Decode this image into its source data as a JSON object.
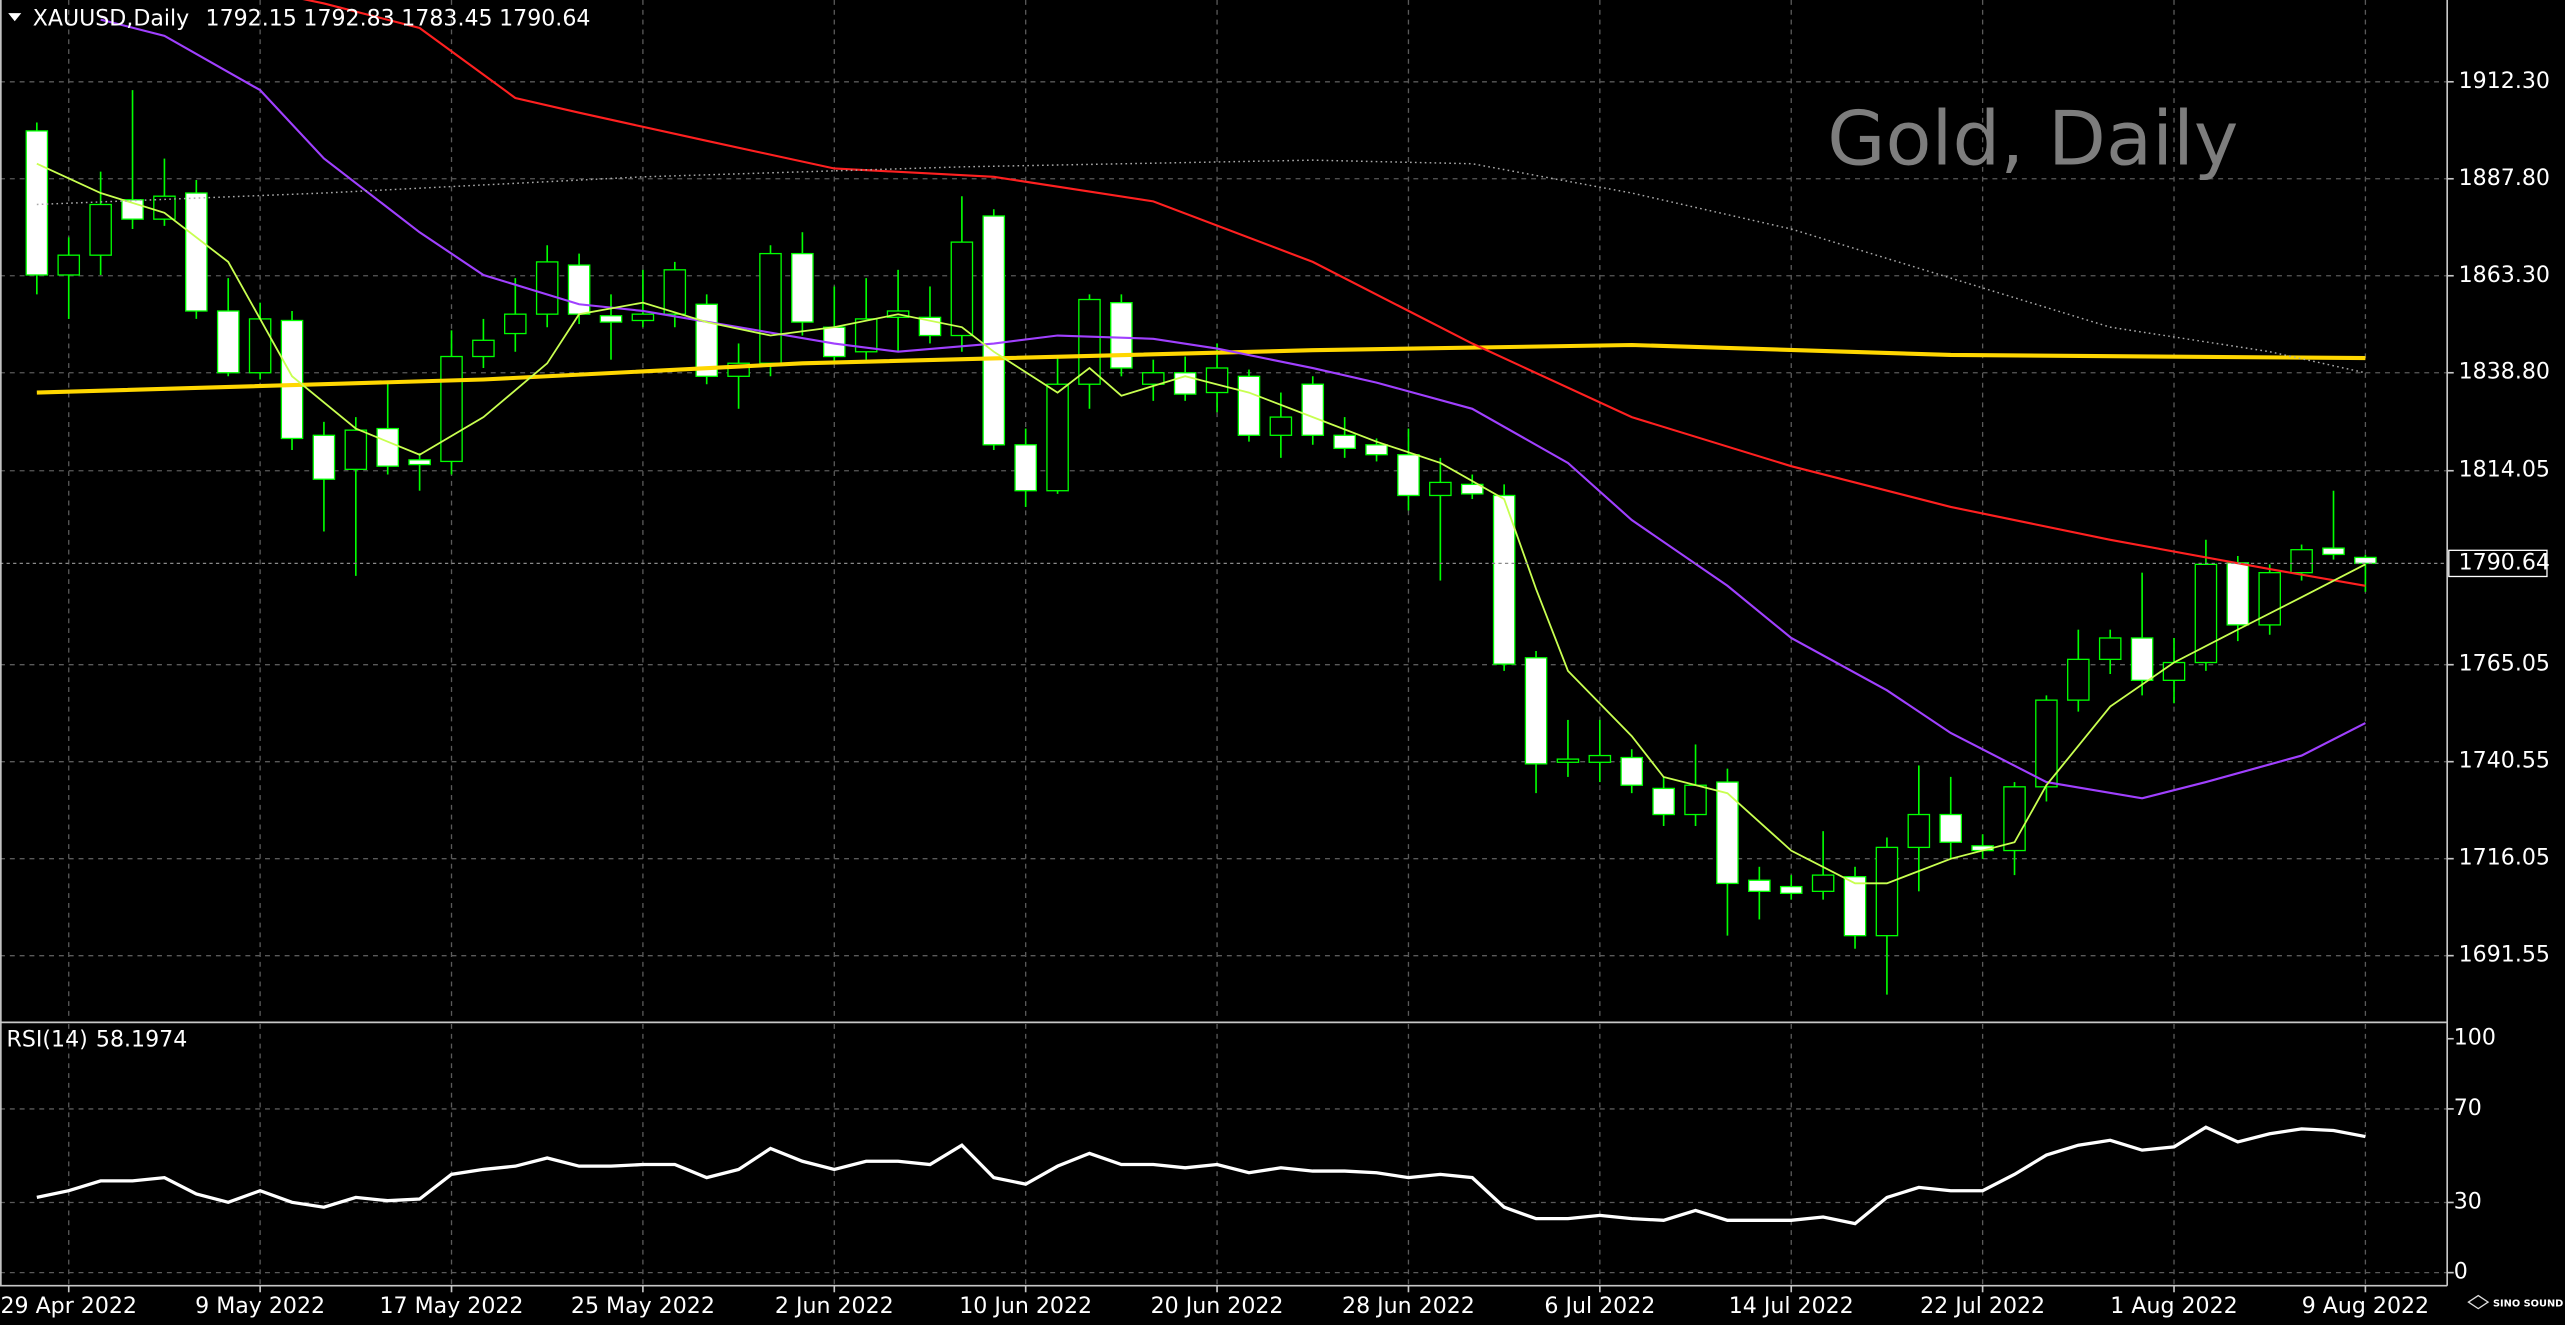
{
  "chart_data": [
    {
      "type": "candlestick",
      "title": "Gold, Daily",
      "symbol": "XAUUSD,Daily",
      "categories": [
        null,
        "29 Apr 2022",
        null,
        null,
        null,
        null,
        null,
        "9 May 2022",
        null,
        null,
        null,
        null,
        null,
        "17 May 2022",
        null,
        null,
        null,
        null,
        null,
        "25 May 2022",
        null,
        null,
        null,
        null,
        null,
        "2 Jun 2022",
        null,
        null,
        null,
        null,
        null,
        "10 Jun 2022",
        null,
        null,
        null,
        null,
        null,
        "20 Jun 2022",
        null,
        null,
        null,
        null,
        null,
        "28 Jun 2022",
        null,
        null,
        null,
        null,
        null,
        "6 Jul 2022",
        null,
        null,
        null,
        null,
        null,
        "14 Jul 2022",
        null,
        null,
        null,
        null,
        null,
        "22 Jul 2022",
        null,
        null,
        null,
        null,
        null,
        "1 Aug 2022",
        null,
        null,
        null,
        null,
        null,
        "9 Aug 2022"
      ],
      "open": [
        1899.9,
        1863.5,
        1868.5,
        1882.5,
        1877.6,
        1884.2,
        1854.4,
        1838.8,
        1852.0,
        1823.0,
        1814.4,
        1824.7,
        1816.8,
        1816.4,
        1842.9,
        1848.7,
        1853.6,
        1866.0,
        1853.2,
        1852.0,
        1853.6,
        1856.1,
        1837.9,
        1841.2,
        1868.9,
        1850.3,
        1844.1,
        1852.8,
        1852.8,
        1848.2,
        1878.4,
        1820.6,
        1809.0,
        1835.9,
        1856.5,
        1835.9,
        1838.8,
        1833.8,
        1837.9,
        1823.0,
        1835.9,
        1823.0,
        1820.6,
        1818.1,
        1807.8,
        1810.6,
        1807.8,
        1766.8,
        1740.4,
        1740.4,
        1741.6,
        1733.8,
        1727.2,
        1735.4,
        1710.6,
        1709.0,
        1707.8,
        1711.5,
        1696.6,
        1718.9,
        1727.2,
        1719.3,
        1718.1,
        1734.2,
        1756.1,
        1766.4,
        1771.8,
        1761.1,
        1765.6,
        1790.8,
        1775.1,
        1788.3,
        1794.5,
        1792.15
      ],
      "high": [
        1902.0,
        1873.0,
        1889.6,
        1910.2,
        1892.9,
        1887.5,
        1862.7,
        1856.5,
        1854.4,
        1826.4,
        1827.6,
        1836.7,
        1818.5,
        1849.5,
        1852.4,
        1862.7,
        1871.0,
        1868.9,
        1858.6,
        1864.8,
        1866.8,
        1858.6,
        1846.2,
        1871.0,
        1874.3,
        1860.6,
        1862.7,
        1864.8,
        1860.6,
        1883.4,
        1880.1,
        1824.7,
        1842.9,
        1858.6,
        1858.6,
        1842.1,
        1842.9,
        1846.2,
        1839.6,
        1833.8,
        1837.9,
        1827.6,
        1822.2,
        1824.7,
        1817.3,
        1813.1,
        1810.6,
        1768.5,
        1751.1,
        1751.1,
        1743.7,
        1736.7,
        1744.9,
        1738.8,
        1714.0,
        1711.9,
        1723.0,
        1714.0,
        1721.4,
        1739.6,
        1736.7,
        1722.2,
        1735.4,
        1757.3,
        1773.9,
        1773.9,
        1788.3,
        1771.8,
        1796.6,
        1792.5,
        1790.4,
        1795.4,
        1809.0,
        1792.83
      ],
      "low": [
        1858.6,
        1852.4,
        1863.5,
        1875.1,
        1875.9,
        1852.4,
        1837.9,
        1837.1,
        1819.3,
        1798.7,
        1787.5,
        1813.1,
        1809.0,
        1813.1,
        1840.0,
        1844.1,
        1850.3,
        1851.1,
        1842.1,
        1850.3,
        1850.3,
        1835.9,
        1829.7,
        1837.9,
        1848.2,
        1841.2,
        1842.1,
        1844.1,
        1846.2,
        1844.1,
        1819.3,
        1804.9,
        1808.2,
        1829.7,
        1837.9,
        1831.7,
        1831.7,
        1828.8,
        1821.4,
        1817.3,
        1820.6,
        1817.3,
        1816.4,
        1804.0,
        1786.3,
        1806.9,
        1763.5,
        1732.6,
        1736.7,
        1735.4,
        1732.6,
        1724.3,
        1724.3,
        1696.6,
        1700.7,
        1705.7,
        1705.7,
        1693.3,
        1681.7,
        1707.8,
        1716.0,
        1716.0,
        1711.9,
        1730.5,
        1753.2,
        1762.7,
        1757.3,
        1755.3,
        1763.5,
        1771.0,
        1772.6,
        1786.3,
        1791.6,
        1783.45
      ],
      "close": [
        1863.5,
        1868.5,
        1881.3,
        1877.6,
        1883.4,
        1854.4,
        1838.8,
        1852.4,
        1822.2,
        1811.9,
        1824.3,
        1815.2,
        1815.6,
        1842.9,
        1847.0,
        1853.6,
        1866.8,
        1853.6,
        1851.6,
        1853.6,
        1864.8,
        1837.9,
        1841.2,
        1868.9,
        1851.6,
        1842.9,
        1852.4,
        1854.4,
        1848.2,
        1871.8,
        1820.6,
        1809.0,
        1835.9,
        1857.3,
        1840.0,
        1838.8,
        1833.4,
        1840.0,
        1823.0,
        1827.6,
        1823.0,
        1819.7,
        1818.1,
        1807.8,
        1811.1,
        1808.2,
        1765.2,
        1740.0,
        1741.2,
        1742.1,
        1734.6,
        1727.2,
        1734.6,
        1709.8,
        1707.8,
        1707.3,
        1711.9,
        1696.6,
        1718.9,
        1727.2,
        1720.2,
        1718.1,
        1734.2,
        1756.1,
        1766.4,
        1771.8,
        1761.1,
        1765.6,
        1790.4,
        1775.1,
        1788.3,
        1794.1,
        1792.9,
        1790.64
      ],
      "up_color": "#000000",
      "down_color": "#ffffff",
      "wick_color": "#00ff00",
      "ylim": [
        1675.11,
        1932.96
      ],
      "yticks": [
        {
          "value": 1912.3,
          "label": "1912.30"
        },
        {
          "value": 1887.8,
          "label": "1887.80"
        },
        {
          "value": 1863.3,
          "label": "1863.30"
        },
        {
          "value": 1838.8,
          "label": "1838.80"
        },
        1814.05,
        1765.05,
        1740.55,
        1716.05,
        1691.55
      ],
      "grid": true,
      "price_line": true,
      "overlays": [
        {
          "color": "#ffd700",
          "width": 2.5,
          "dash": false,
          "x": [
            0,
            14,
            24,
            40,
            50,
            60,
            73
          ],
          "values": [
            1833.8,
            1837.1,
            1841.2,
            1844.5,
            1845.8,
            1843.3,
            1842.5
          ]
        },
        {
          "color": "#ff2020",
          "width": 1.3,
          "dash": false,
          "x": [
            8,
            9,
            12,
            15,
            17,
            21,
            25,
            30,
            35,
            40,
            45,
            50,
            55,
            60,
            65,
            70,
            73
          ],
          "values": [
            1933.8,
            1932.1,
            1925.9,
            1908.2,
            1904.5,
            1897.4,
            1890.4,
            1888.3,
            1882.1,
            1866.8,
            1846.2,
            1827.6,
            1815.2,
            1804.9,
            1796.6,
            1789.2,
            1785.0
          ]
        },
        {
          "color": "#a040ff",
          "width": 1.3,
          "dash": false,
          "x": [
            2,
            4,
            7,
            9,
            12,
            14,
            17,
            19,
            22,
            25,
            27,
            30,
            32,
            35,
            37,
            40,
            42,
            45,
            48,
            50,
            53,
            55,
            58,
            60,
            63,
            66,
            68,
            71,
            73
          ],
          "values": [
            1928.0,
            1923.9,
            1910.2,
            1892.9,
            1874.3,
            1863.5,
            1856.1,
            1854.4,
            1850.3,
            1846.2,
            1844.1,
            1846.2,
            1848.2,
            1847.4,
            1844.9,
            1840.0,
            1836.3,
            1829.7,
            1816.0,
            1801.6,
            1785.0,
            1771.8,
            1758.6,
            1747.8,
            1735.4,
            1731.3,
            1735.4,
            1742.1,
            1750.3
          ]
        },
        {
          "color": "#c8ff50",
          "width": 1.1,
          "dash": false,
          "x": [
            0,
            2,
            4,
            6,
            7,
            8,
            10,
            12,
            14,
            16,
            17,
            19,
            21,
            23,
            25,
            27,
            29,
            30,
            32,
            33,
            34,
            36,
            38,
            40,
            42,
            44,
            46,
            47,
            48,
            50,
            51,
            53,
            55,
            57,
            58,
            60,
            62,
            63,
            65,
            67,
            69,
            71,
            73
          ],
          "values": [
            1891.6,
            1884.2,
            1879.2,
            1866.8,
            1852.4,
            1837.9,
            1824.7,
            1818.1,
            1827.6,
            1841.2,
            1853.6,
            1856.5,
            1851.6,
            1848.2,
            1850.3,
            1853.6,
            1850.3,
            1844.1,
            1833.8,
            1840.0,
            1833.0,
            1837.9,
            1833.8,
            1827.6,
            1821.4,
            1816.0,
            1806.9,
            1784.2,
            1763.5,
            1747.0,
            1736.7,
            1732.6,
            1718.1,
            1709.8,
            1709.8,
            1716.0,
            1720.2,
            1734.6,
            1754.5,
            1765.6,
            1773.9,
            1782.1,
            1790.4
          ]
        },
        {
          "color": "#aaaaaa",
          "width": 0.9,
          "dash": true,
          "x": [
            0,
            9,
            19,
            29,
            40,
            45,
            50,
            55,
            60,
            65,
            70,
            73
          ],
          "values": [
            1881.3,
            1884.2,
            1888.3,
            1890.8,
            1892.5,
            1891.6,
            1884.2,
            1875.1,
            1862.7,
            1850.3,
            1844.1,
            1838.8
          ]
        }
      ]
    },
    {
      "type": "line",
      "label": "RSI(14)",
      "color": "#ffffff",
      "values": [
        32.2,
        35.0,
        39.2,
        39.2,
        40.6,
        33.6,
        30.1,
        35.0,
        30.1,
        28.0,
        32.2,
        30.8,
        31.5,
        42.0,
        44.1,
        45.5,
        49.0,
        45.5,
        45.5,
        46.2,
        46.2,
        40.6,
        44.1,
        53.1,
        47.6,
        44.1,
        47.6,
        47.6,
        46.2,
        54.5,
        40.6,
        37.8,
        45.5,
        51.0,
        46.2,
        46.2,
        44.8,
        46.2,
        42.7,
        44.8,
        43.4,
        43.4,
        42.7,
        40.6,
        42.0,
        40.6,
        28.0,
        23.1,
        23.1,
        24.5,
        23.1,
        22.4,
        26.6,
        22.4,
        22.4,
        22.4,
        23.8,
        21.0,
        32.2,
        36.4,
        35.0,
        35.0,
        42.0,
        50.3,
        54.5,
        56.6,
        52.4,
        53.8,
        62.2,
        55.9,
        59.4,
        61.5,
        60.8,
        58.1974
      ],
      "ylim": [
        -5.6,
        106.3
      ],
      "yticks": [
        0,
        30,
        70,
        100
      ],
      "grid": true
    }
  ],
  "logo": "SINO SOUND"
}
